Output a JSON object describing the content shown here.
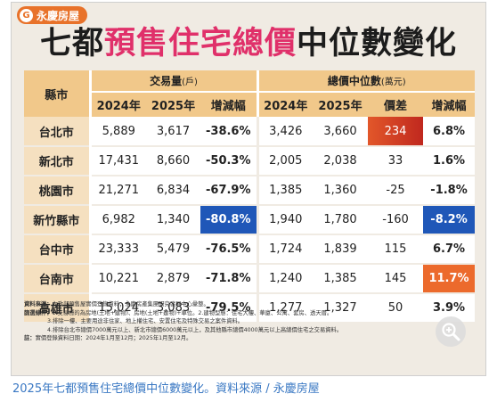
{
  "logo": {
    "mark": "G",
    "text": "永慶房屋"
  },
  "title": {
    "part1": "七都",
    "part2": "預售住宅總價",
    "part3": "中位數變化"
  },
  "table": {
    "city_header": "縣市",
    "group1": {
      "label": "交易量",
      "unit": "(戶)"
    },
    "group2": {
      "label": "總價中位數",
      "unit": "(萬元)"
    },
    "sub_headers": [
      "2024年",
      "2025年",
      "增減幅",
      "2024年",
      "2025年",
      "價差",
      "增減幅"
    ],
    "rows": [
      {
        "city": "台北市",
        "v": [
          "5,889",
          "3,617",
          "-38.6%",
          "3,426",
          "3,660",
          "234",
          "6.8%"
        ]
      },
      {
        "city": "新北市",
        "v": [
          "17,431",
          "8,660",
          "-50.3%",
          "2,005",
          "2,038",
          "33",
          "1.6%"
        ]
      },
      {
        "city": "桃園市",
        "v": [
          "21,271",
          "6,834",
          "-67.9%",
          "1,385",
          "1,360",
          "-25",
          "-1.8%"
        ]
      },
      {
        "city": "新竹縣市",
        "v": [
          "6,982",
          "1,340",
          "-80.8%",
          "1,940",
          "1,780",
          "-160",
          "-8.2%"
        ]
      },
      {
        "city": "台中市",
        "v": [
          "23,333",
          "5,479",
          "-76.5%",
          "1,724",
          "1,839",
          "115",
          "6.7%"
        ]
      },
      {
        "city": "台南市",
        "v": [
          "10,221",
          "2,879",
          "-71.8%",
          "1,240",
          "1,385",
          "145",
          "11.7%"
        ]
      },
      {
        "city": "高雄市",
        "v": [
          "15,024",
          "3,083",
          "-79.5%",
          "1,277",
          "1,327",
          "50",
          "3.9%"
        ]
      }
    ]
  },
  "notes": {
    "l1_label": "資料來源：",
    "l1": "內政部預售屋實價登錄資料；永慶房產集團研究發展中心彙整。",
    "l2_label": "篩選條件：",
    "l2": "1.交易標的為房地(土地+建物)、房地(土地+建物)+車位。2.建物型態：住宅大樓、華廈、公寓、套房、透天厝。",
    "l3": "3.排除一樓、主要用途非住家、地上權住宅、安置住宅及特殊交易之案件資料。",
    "l4": "4.排除台北市總價7000萬元以上、新北市總價6000萬元以上，及其他縣市總價4000萬元以上高總價住宅之交易資料。",
    "l5_label": "註：",
    "l5": "實價登錄資料日期：2024年1月至12月；2025年1月至12月。"
  },
  "caption": "2025年七都預售住宅總價中位數變化。資料來源 / 永慶房屋",
  "colors": {
    "header": "#f1c88a",
    "city_cell": "#f5e0c0",
    "highlight_blue": "#1f57b8",
    "highlight_red": "#d2401f",
    "highlight_orange": "#ec6a2c",
    "title_accent": "#e0306a",
    "caption": "#3a78c3"
  },
  "icons": {
    "zoom": "zoom-in-icon"
  }
}
